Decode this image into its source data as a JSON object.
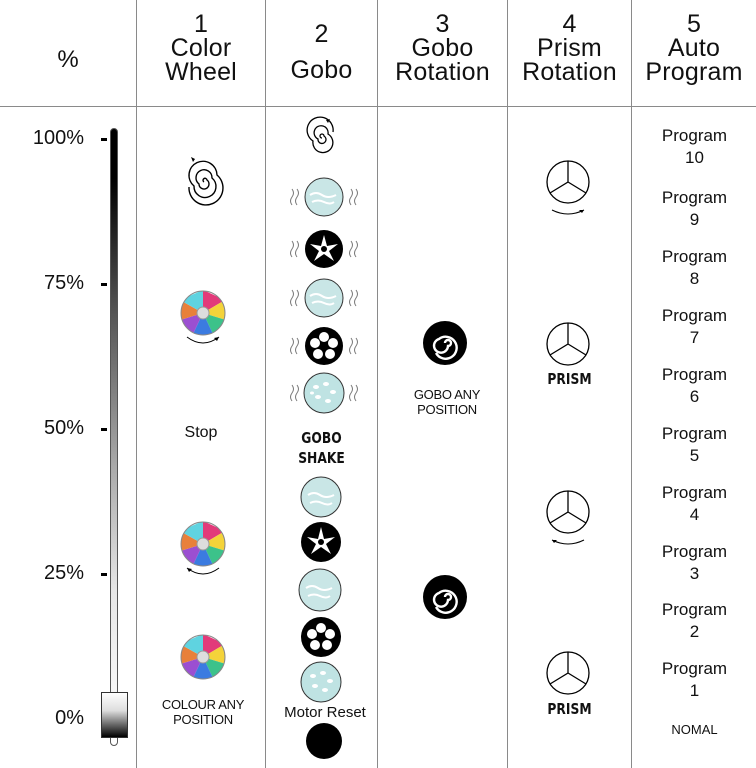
{
  "header": {
    "percent_label": "%",
    "columns": [
      {
        "number": "1",
        "line1": "Color",
        "line2": "Wheel"
      },
      {
        "number": "2",
        "line1": "",
        "line2": "Gobo"
      },
      {
        "number": "3",
        "line1": "Gobo",
        "line2": "Rotation"
      },
      {
        "number": "4",
        "line1": "Prism",
        "line2": "Rotation"
      },
      {
        "number": "5",
        "line1": "Auto",
        "line2": "Program"
      }
    ]
  },
  "scale": {
    "labels": [
      "100%",
      "75%",
      "50%",
      "25%",
      "0%"
    ]
  },
  "color_wheel": {
    "stop_label": "Stop",
    "any_position_label": "COLOUR ANY POSITION"
  },
  "gobo": {
    "shake_label": "GOBO SHAKE",
    "motor_reset_label": "Motor Reset"
  },
  "gobo_rotation": {
    "any_position_label": "GOBO ANY POSITION"
  },
  "prism": {
    "label_upper": "PRISM",
    "label_lower": "PRISM"
  },
  "auto_program": {
    "items": [
      {
        "word": "Program",
        "num": "10"
      },
      {
        "word": "Program",
        "num": "9"
      },
      {
        "word": "Program",
        "num": "8"
      },
      {
        "word": "Program",
        "num": "7"
      },
      {
        "word": "Program",
        "num": "6"
      },
      {
        "word": "Program",
        "num": "5"
      },
      {
        "word": "Program",
        "num": "4"
      },
      {
        "word": "Program",
        "num": "3"
      },
      {
        "word": "Program",
        "num": "2"
      },
      {
        "word": "Program",
        "num": "1"
      }
    ],
    "normal_label": "NOMAL"
  }
}
